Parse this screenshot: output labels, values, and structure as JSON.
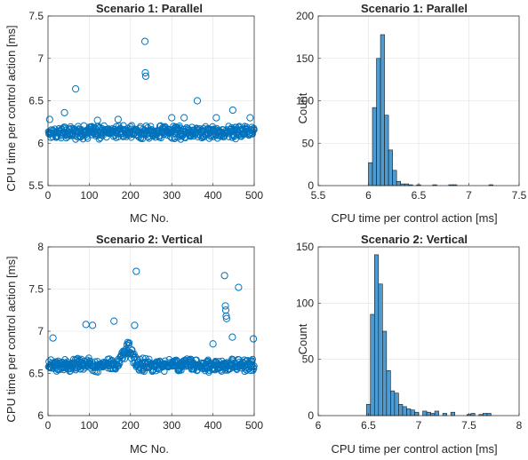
{
  "colors": {
    "marker": "#0072BD",
    "bar_fill": "#4D9BD1"
  },
  "chart_data": [
    {
      "id": "tl",
      "type": "scatter",
      "title": "Scenario 1: Parallel",
      "xlabel": "MC No.",
      "ylabel": "CPU time per control action [ms]",
      "xlim": [
        0,
        500
      ],
      "ylim": [
        5.5,
        7.5
      ],
      "xticks": [
        0,
        100,
        200,
        300,
        400,
        500
      ],
      "yticks": [
        5.5,
        6,
        6.5,
        7,
        7.5
      ],
      "grid": true,
      "marker": "circle",
      "baseline": {
        "center": 6.13,
        "spread": 0.09
      },
      "outliers": [
        {
          "x": 4,
          "y": 6.28
        },
        {
          "x": 40,
          "y": 6.36
        },
        {
          "x": 67,
          "y": 6.64
        },
        {
          "x": 120,
          "y": 6.27
        },
        {
          "x": 170,
          "y": 6.28
        },
        {
          "x": 235,
          "y": 7.2
        },
        {
          "x": 236,
          "y": 6.83
        },
        {
          "x": 237,
          "y": 6.79
        },
        {
          "x": 300,
          "y": 6.3
        },
        {
          "x": 330,
          "y": 6.3
        },
        {
          "x": 362,
          "y": 6.5
        },
        {
          "x": 408,
          "y": 6.3
        },
        {
          "x": 448,
          "y": 6.39
        },
        {
          "x": 490,
          "y": 6.3
        }
      ]
    },
    {
      "id": "tr",
      "type": "bar",
      "title": "Scenario 1: Parallel",
      "xlabel": "CPU time per control action [ms]",
      "ylabel": "Count",
      "xlim": [
        5.5,
        7.5
      ],
      "ylim": [
        0,
        200
      ],
      "xticks": [
        5.5,
        6,
        6.5,
        7,
        7.5
      ],
      "yticks": [
        0,
        50,
        100,
        150,
        200
      ],
      "grid": true,
      "bin_width": 0.04,
      "bins": [
        {
          "x": 6.0,
          "count": 27
        },
        {
          "x": 6.04,
          "count": 92
        },
        {
          "x": 6.08,
          "count": 150
        },
        {
          "x": 6.12,
          "count": 178
        },
        {
          "x": 6.16,
          "count": 83
        },
        {
          "x": 6.2,
          "count": 42
        },
        {
          "x": 6.24,
          "count": 18
        },
        {
          "x": 6.28,
          "count": 5
        },
        {
          "x": 6.32,
          "count": 2
        },
        {
          "x": 6.36,
          "count": 2
        },
        {
          "x": 6.4,
          "count": 1
        },
        {
          "x": 6.48,
          "count": 1
        },
        {
          "x": 6.64,
          "count": 1
        },
        {
          "x": 6.8,
          "count": 1
        },
        {
          "x": 6.84,
          "count": 1
        },
        {
          "x": 7.2,
          "count": 1
        }
      ]
    },
    {
      "id": "bl",
      "type": "scatter",
      "title": "Scenario 2: Vertical",
      "xlabel": "MC No.",
      "ylabel": "CPU time per control action [ms]",
      "xlim": [
        0,
        500
      ],
      "ylim": [
        6,
        8
      ],
      "xticks": [
        0,
        100,
        200,
        300,
        400,
        500
      ],
      "yticks": [
        6,
        6.5,
        7,
        7.5,
        8
      ],
      "grid": true,
      "marker": "circle",
      "baseline": {
        "center": 6.6,
        "spread": 0.09,
        "bump": {
          "from": 170,
          "to": 215,
          "peak": 6.82
        }
      },
      "outliers": [
        {
          "x": 12,
          "y": 6.92
        },
        {
          "x": 92,
          "y": 7.08
        },
        {
          "x": 108,
          "y": 7.07
        },
        {
          "x": 160,
          "y": 7.12
        },
        {
          "x": 210,
          "y": 7.07
        },
        {
          "x": 214,
          "y": 7.71
        },
        {
          "x": 400,
          "y": 6.85
        },
        {
          "x": 428,
          "y": 7.66
        },
        {
          "x": 430,
          "y": 7.3
        },
        {
          "x": 431,
          "y": 7.25
        },
        {
          "x": 432,
          "y": 7.18
        },
        {
          "x": 433,
          "y": 7.15
        },
        {
          "x": 447,
          "y": 6.93
        },
        {
          "x": 462,
          "y": 7.52
        },
        {
          "x": 498,
          "y": 6.91
        }
      ]
    },
    {
      "id": "br",
      "type": "bar",
      "title": "Scenario 2: Vertical",
      "xlabel": "CPU time per control action [ms]",
      "ylabel": "Count",
      "xlim": [
        6,
        8
      ],
      "ylim": [
        0,
        150
      ],
      "xticks": [
        6,
        6.5,
        7,
        7.5,
        8
      ],
      "yticks": [
        0,
        50,
        100,
        150
      ],
      "grid": true,
      "bin_width": 0.04,
      "bins": [
        {
          "x": 6.48,
          "count": 10
        },
        {
          "x": 6.52,
          "count": 90
        },
        {
          "x": 6.56,
          "count": 143
        },
        {
          "x": 6.6,
          "count": 117
        },
        {
          "x": 6.64,
          "count": 75
        },
        {
          "x": 6.68,
          "count": 40
        },
        {
          "x": 6.72,
          "count": 22
        },
        {
          "x": 6.76,
          "count": 20
        },
        {
          "x": 6.8,
          "count": 10
        },
        {
          "x": 6.84,
          "count": 8
        },
        {
          "x": 6.88,
          "count": 6
        },
        {
          "x": 6.92,
          "count": 5
        },
        {
          "x": 6.96,
          "count": 3
        },
        {
          "x": 7.04,
          "count": 4
        },
        {
          "x": 7.08,
          "count": 3
        },
        {
          "x": 7.12,
          "count": 2
        },
        {
          "x": 7.16,
          "count": 4
        },
        {
          "x": 7.24,
          "count": 2
        },
        {
          "x": 7.32,
          "count": 3
        },
        {
          "x": 7.48,
          "count": 1
        },
        {
          "x": 7.52,
          "count": 2
        },
        {
          "x": 7.6,
          "count": 1
        },
        {
          "x": 7.64,
          "count": 2
        },
        {
          "x": 7.68,
          "count": 2
        }
      ]
    }
  ]
}
